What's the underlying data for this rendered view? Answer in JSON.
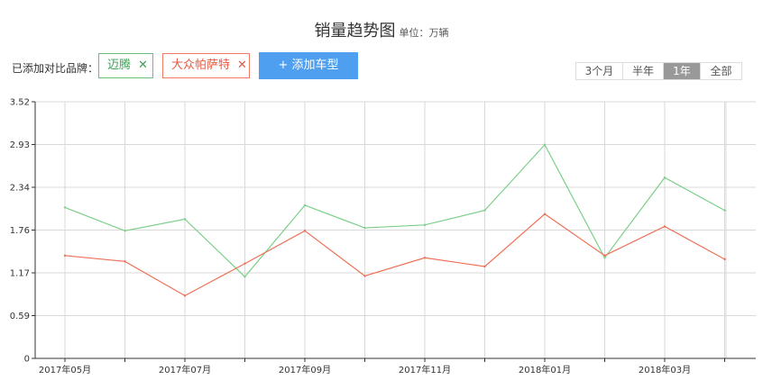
{
  "header": {
    "title": "销量趋势图",
    "unit": "单位：万辆"
  },
  "compare": {
    "label": "已添加对比品牌：",
    "brands": [
      {
        "name": "迈腾",
        "color": "#5cb86e",
        "remove_icon": "close-icon"
      },
      {
        "name": "大众帕萨特",
        "color": "#ee6f55",
        "remove_icon": "close-icon"
      }
    ],
    "add_button": "+ 添加车型"
  },
  "range": {
    "options": [
      "3个月",
      "半年",
      "1年",
      "全部"
    ],
    "selected": "1年"
  },
  "chart_data": {
    "type": "line",
    "x": [
      "2017年05月",
      "2017年06月",
      "2017年07月",
      "2017年08月",
      "2017年09月",
      "2017年10月",
      "2017年11月",
      "2017年12月",
      "2018年01月",
      "2018年02月",
      "2018年03月",
      "2018年04月"
    ],
    "x_tick_labels": [
      "2017年05月",
      "",
      "2017年07月",
      "",
      "2017年09月",
      "",
      "2017年11月",
      "",
      "2018年01月",
      "",
      "2018年03月",
      ""
    ],
    "series": [
      {
        "name": "迈腾",
        "color": "#7ccf8a",
        "values": [
          2.07,
          1.75,
          1.91,
          1.12,
          2.1,
          1.79,
          1.83,
          2.03,
          2.93,
          1.38,
          2.48,
          2.03
        ]
      },
      {
        "name": "大众帕萨特",
        "color": "#ee6f55",
        "values": [
          1.41,
          1.33,
          0.86,
          1.3,
          1.75,
          1.13,
          1.38,
          1.26,
          1.98,
          1.41,
          1.81,
          1.36
        ]
      }
    ],
    "y_ticks": [
      "0",
      "0.59",
      "1.17",
      "1.76",
      "2.34",
      "2.93",
      "3.52"
    ],
    "ylim": [
      0,
      3.52
    ],
    "grid": true,
    "legend": "top-left"
  }
}
